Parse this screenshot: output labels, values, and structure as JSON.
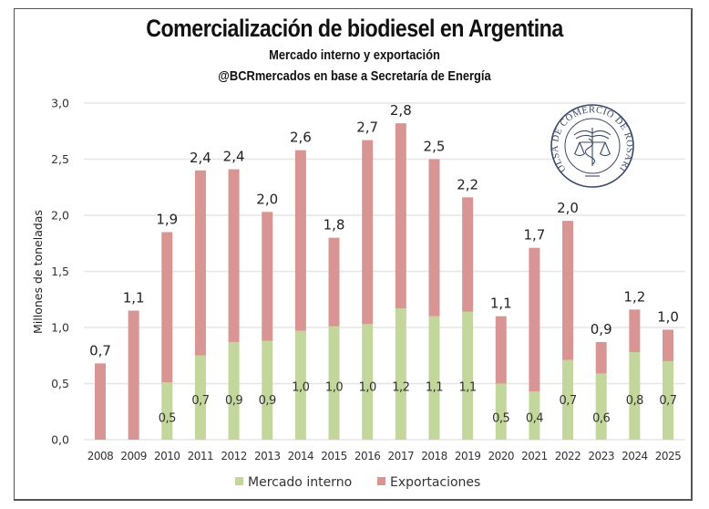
{
  "chart_data": {
    "type": "bar",
    "stacked": true,
    "title": "Comercialización de biodiesel en Argentina",
    "subtitle": "Mercado interno y exportación",
    "source": "@BCRmercados en base a Secretaría de Energía",
    "xlabel": "",
    "ylabel": "Millones de toneladas",
    "ylim": [
      0,
      3.0
    ],
    "yticks": [
      0.0,
      0.5,
      1.0,
      1.5,
      2.0,
      2.5,
      3.0
    ],
    "ytick_labels": [
      "0,0",
      "0,5",
      "1,0",
      "1,5",
      "2,0",
      "2,5",
      "3,0"
    ],
    "grid": true,
    "legend_position": "bottom",
    "categories": [
      "2008",
      "2009",
      "2010",
      "2011",
      "2012",
      "2013",
      "2014",
      "2015",
      "2016",
      "2017",
      "2018",
      "2019",
      "2020",
      "2021",
      "2022",
      "2023",
      "2024",
      "2025"
    ],
    "series": [
      {
        "name": "Mercado interno",
        "color": "#c3d69b",
        "values": [
          0.0,
          0.0,
          0.51,
          0.75,
          0.87,
          0.88,
          0.97,
          1.01,
          1.03,
          1.17,
          1.1,
          1.14,
          0.5,
          0.43,
          0.71,
          0.59,
          0.78,
          0.7
        ],
        "labels": [
          "",
          "",
          "0,5",
          "0,7",
          "0,9",
          "0,9",
          "1,0",
          "1,0",
          "1,0",
          "1,2",
          "1,1",
          "1,1",
          "0,5",
          "0,4",
          "0,7",
          "0,6",
          "0,8",
          "0,7"
        ]
      },
      {
        "name": "Exportaciones",
        "color": "#d99594",
        "values": [
          0.68,
          1.15,
          1.34,
          1.65,
          1.54,
          1.15,
          1.61,
          0.79,
          1.64,
          1.65,
          1.4,
          1.02,
          0.6,
          1.28,
          1.24,
          0.28,
          0.38,
          0.28
        ]
      }
    ],
    "totals": [
      0.68,
      1.15,
      1.85,
      2.4,
      2.41,
      2.03,
      2.58,
      1.8,
      2.67,
      2.82,
      2.5,
      2.16,
      1.1,
      1.71,
      1.95,
      0.87,
      1.16,
      0.98
    ],
    "total_labels": [
      "0,7",
      "1,1",
      "1,9",
      "2,4",
      "2,4",
      "2,0",
      "2,6",
      "1,8",
      "2,7",
      "2,8",
      "2,5",
      "2,2",
      "1,1",
      "1,7",
      "2,0",
      "0,9",
      "1,2",
      "1,0"
    ]
  },
  "logo": {
    "name": "Bolsa de Comercio de Rosario seal",
    "text": "BOLSA DE COMERCIO DE ROSARIO"
  },
  "colors": {
    "grid": "#e6e6e6",
    "frame": "#555555"
  }
}
